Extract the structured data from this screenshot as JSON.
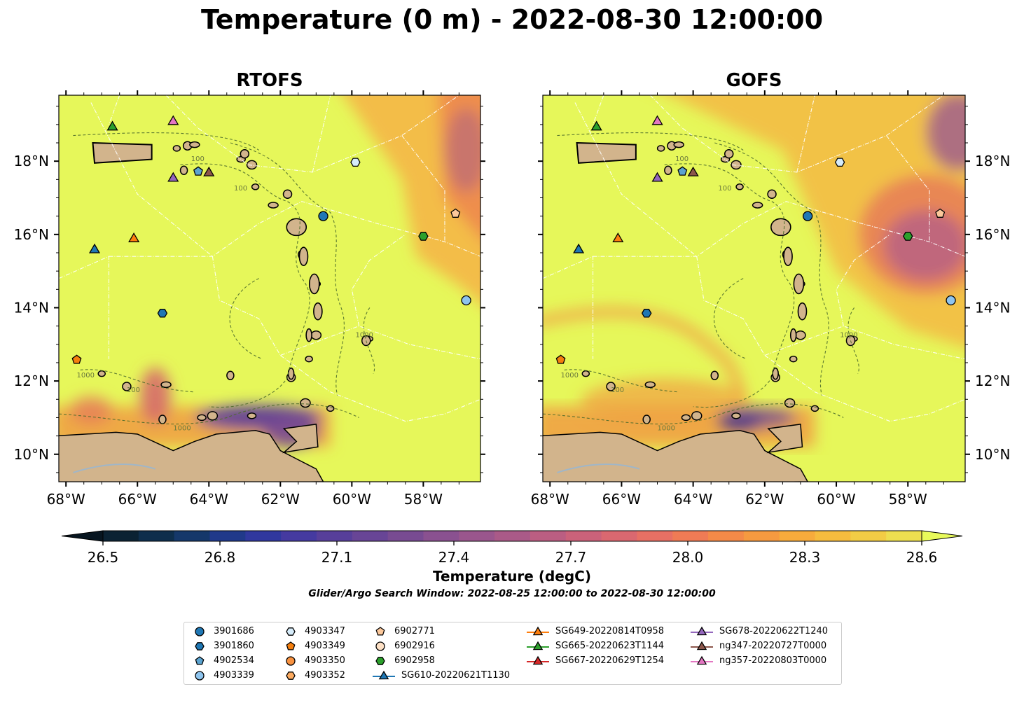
{
  "title": "Temperature (0 m) - 2022-08-30 12:00:00",
  "panels": [
    {
      "title": "RTOFS"
    },
    {
      "title": "GOFS"
    }
  ],
  "x_ticks": [
    "68°W",
    "66°W",
    "64°W",
    "62°W",
    "60°W",
    "58°W"
  ],
  "y_ticks": [
    "18°N",
    "16°N",
    "14°N",
    "12°N",
    "10°N"
  ],
  "contour_labels": [
    "100",
    "100",
    "1000",
    "1000",
    "100",
    "1000"
  ],
  "colorbar": {
    "label": "Temperature (degC)",
    "ticks": [
      "26.5",
      "26.8",
      "27.1",
      "27.4",
      "27.7",
      "28.0",
      "28.3",
      "28.6"
    ],
    "colors": [
      "#0b2233",
      "#0e2e4c",
      "#15386a",
      "#20398a",
      "#30389e",
      "#453aa0",
      "#573f9a",
      "#684596",
      "#784b92",
      "#8a5190",
      "#9a568d",
      "#aa5a88",
      "#bb5e82",
      "#cb627a",
      "#da6870",
      "#e77064",
      "#ef7b55",
      "#f48a48",
      "#f69a40",
      "#f7ab3c",
      "#f6bc3e",
      "#f2cc45",
      "#edde50"
    ],
    "extend_low": "#071520",
    "extend_high": "#e8fa5a"
  },
  "subtitle": "Glider/Argo Search Window: 2022-08-25 12:00:00 to 2022-08-30 12:00:00",
  "colors": {
    "ocean": "#e6f75a",
    "land": "#d2b48c",
    "warm": "#f6a13c",
    "cool": "#b86283",
    "cold": "#3a3296"
  },
  "legend": [
    {
      "label": "3901686",
      "marker": "circle",
      "color": "#1f77b4"
    },
    {
      "label": "3901860",
      "marker": "hexagon",
      "color": "#1f77b4"
    },
    {
      "label": "4902534",
      "marker": "pentagon",
      "color": "#5ba3d0"
    },
    {
      "label": "4903339",
      "marker": "circle",
      "color": "#8ec4ee"
    },
    {
      "label": "4903347",
      "marker": "hexagon",
      "color": "#d6ecfa"
    },
    {
      "label": "4903349",
      "marker": "pentagon",
      "color": "#f57f0e"
    },
    {
      "label": "4903350",
      "marker": "circle",
      "color": "#f89240"
    },
    {
      "label": "4903352",
      "marker": "hexagon",
      "color": "#fdab60"
    },
    {
      "label": "6902771",
      "marker": "pentagon",
      "color": "#fcc89b"
    },
    {
      "label": "6902916",
      "marker": "circle",
      "color": "#fde0c5"
    },
    {
      "label": "6902958",
      "marker": "hexagon",
      "color": "#2ca02c"
    },
    {
      "label": "SG610-20220621T1130",
      "marker": "triangle-line",
      "color": "#1f77b4"
    },
    {
      "label": "SG649-20220814T0958",
      "marker": "triangle-line",
      "color": "#ff7f0e"
    },
    {
      "label": "SG665-20220623T1144",
      "marker": "triangle-line",
      "color": "#2ca02c"
    },
    {
      "label": "SG667-20220629T1254",
      "marker": "triangle-line",
      "color": "#d62728"
    },
    {
      "label": "SG678-20220622T1240",
      "marker": "triangle-line",
      "color": "#9467bd"
    },
    {
      "label": "ng347-20220727T0000",
      "marker": "triangle-line",
      "color": "#8c564b"
    },
    {
      "label": "ng357-20220803T0000",
      "marker": "triangle-line",
      "color": "#e377c2"
    }
  ],
  "markers": [
    {
      "label": "3901686",
      "lon": -60.8,
      "lat": 16.5
    },
    {
      "label": "3901860",
      "lon": -65.3,
      "lat": 13.85
    },
    {
      "label": "4902534",
      "lon": -64.3,
      "lat": 17.72
    },
    {
      "label": "4903339",
      "lon": -56.8,
      "lat": 14.2
    },
    {
      "label": "4903347",
      "lon": -59.9,
      "lat": 17.97
    },
    {
      "label": "4903349",
      "lon": -67.7,
      "lat": 12.58
    },
    {
      "label": "6902771",
      "lon": -57.1,
      "lat": 16.57
    },
    {
      "label": "6902958",
      "lon": -58.0,
      "lat": 15.95
    },
    {
      "label": "SG610-20220621T1130",
      "lon": -67.2,
      "lat": 15.6
    },
    {
      "label": "SG649-20220814T0958",
      "lon": -66.1,
      "lat": 15.9
    },
    {
      "label": "SG665-20220623T1144",
      "lon": -66.7,
      "lat": 18.95
    },
    {
      "label": "SG678-20220622T1240",
      "lon": -65.0,
      "lat": 17.55
    },
    {
      "label": "ng347-20220727T0000",
      "lon": -64.0,
      "lat": 17.7
    },
    {
      "label": "ng357-20220803T0000",
      "lon": -65.0,
      "lat": 19.1
    }
  ]
}
